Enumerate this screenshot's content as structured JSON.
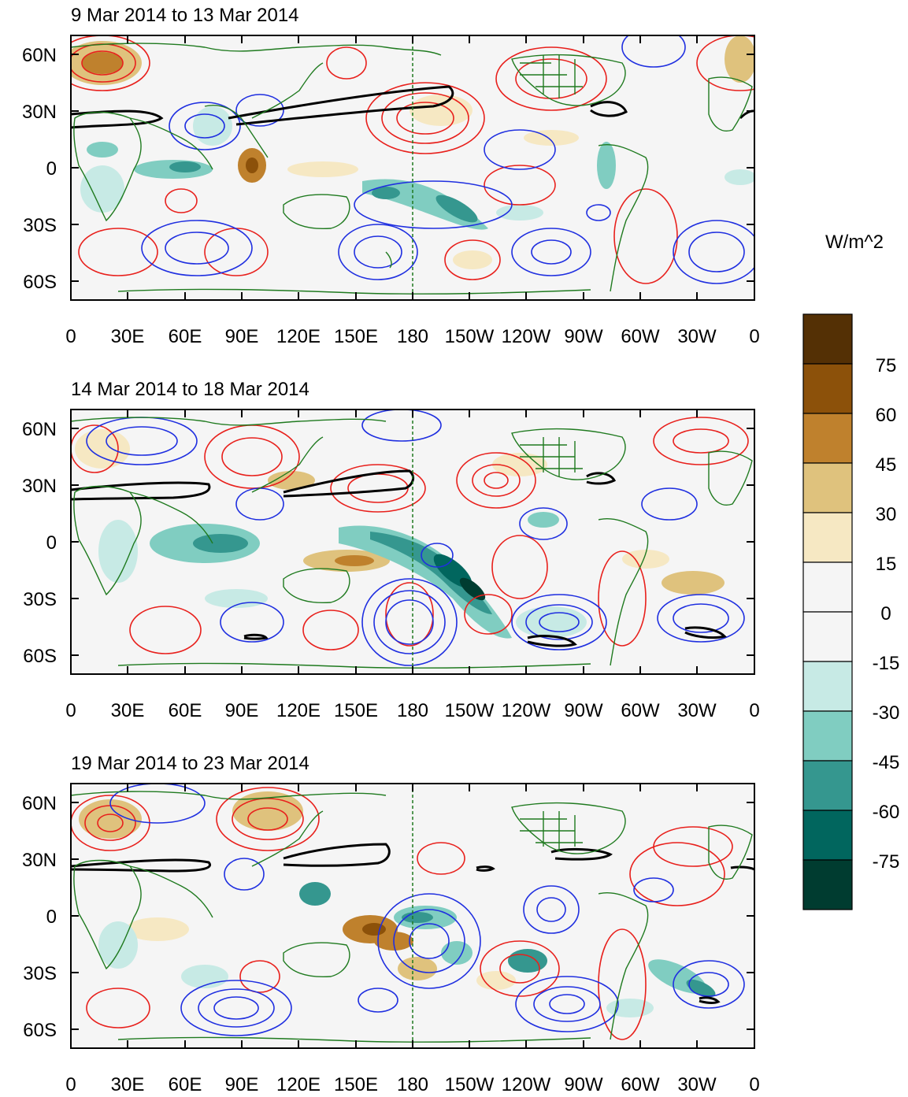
{
  "figure": {
    "panels": [
      {
        "title": "9 Mar 2014 to 13 Mar 2014"
      },
      {
        "title": "14 Mar 2014 to 18 Mar 2014"
      },
      {
        "title": "19 Mar 2014 to 23 Mar 2014"
      }
    ],
    "lat_labels": [
      "60N",
      "30N",
      "0",
      "30S",
      "60S"
    ],
    "lon_labels": [
      "0",
      "30E",
      "60E",
      "90E",
      "120E",
      "150E",
      "180",
      "150W",
      "120W",
      "90W",
      "60W",
      "30W",
      "0"
    ],
    "colorbar": {
      "units": "W/m^2",
      "levels": [
        "75",
        "60",
        "45",
        "30",
        "15",
        "0",
        "-15",
        "-30",
        "-45",
        "-60",
        "-75"
      ],
      "colors": [
        "#543005",
        "#8c510a",
        "#bf812d",
        "#dfc27d",
        "#f6e8c3",
        "#f5f5f5",
        "#f5f5f5",
        "#c7eae5",
        "#80cdc1",
        "#35978f",
        "#01665e",
        "#003c30"
      ]
    },
    "contour_colors": {
      "positive": "#e8201c",
      "negative": "#1f2fe0",
      "thick": "#000000",
      "coast": "#1f7a1f"
    }
  }
}
